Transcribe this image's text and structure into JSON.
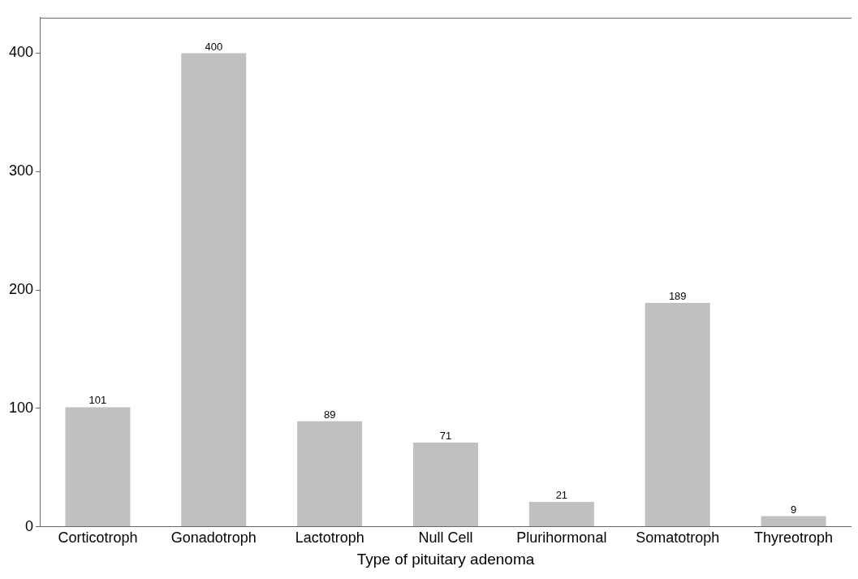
{
  "chart_data": {
    "type": "bar",
    "xlabel": "Type of pituitary adenoma",
    "categories": [
      "Corticotroph",
      "Gonadotroph",
      "Lactotroph",
      "Null Cell",
      "Plurihormonal",
      "Somatotroph",
      "Thyreotroph"
    ],
    "values": [
      101,
      400,
      89,
      71,
      21,
      189,
      9
    ],
    "color": "#c0c0c0",
    "ylim": [
      0,
      430
    ],
    "yticks": [
      0,
      100,
      200,
      300,
      400
    ],
    "grid": false,
    "legend": false,
    "data_labels": true
  }
}
